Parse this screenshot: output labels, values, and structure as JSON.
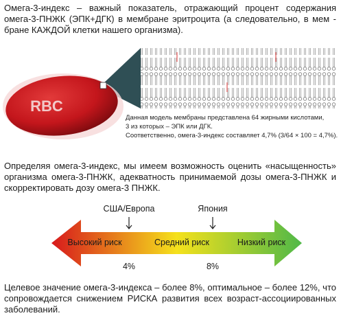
{
  "intro": {
    "lines": [
      "Омега-3-индекс – важный показатель, отражающий процент содержания",
      "омега-3-ПНЖК (ЭПК+ДГК) в мембране эритроцита (а следовательно, в мем -",
      "бране КАЖДОЙ клетки нашего организма)."
    ]
  },
  "figure": {
    "label": "RBC",
    "caption": [
      "Данная модель мембраны представлена 64 жирными кислотами,",
      "3 из которых – ЭПК или ДГК.",
      "Соответственно, омега-3-индекс составляет 4,7% (3/64 × 100 = 4,7%)."
    ]
  },
  "assessment": {
    "lines": [
      "Определяя омега-3-индекс, мы имеем возможность оценить «насыщенность»",
      "организма омега-3-ПНЖК, адекватность принимаемой дозы омега-3-ПНЖК и",
      "скорректировать дозу омега-3 ПНЖК."
    ]
  },
  "scale": {
    "markers": [
      {
        "label": "США/Европа",
        "value": "4%"
      },
      {
        "label": "Япония",
        "value": "8%"
      }
    ],
    "zones": [
      "Высокий риск",
      "Средний риск",
      "Низкий риск"
    ]
  },
  "target": {
    "lines": [
      "Целевое значение омега-3-индекса – более 8%, оптимальное – более 12%, что",
      "сопровождается снижением РИСКА развития всех возраст-ассоциированных",
      "заболеваний."
    ]
  }
}
